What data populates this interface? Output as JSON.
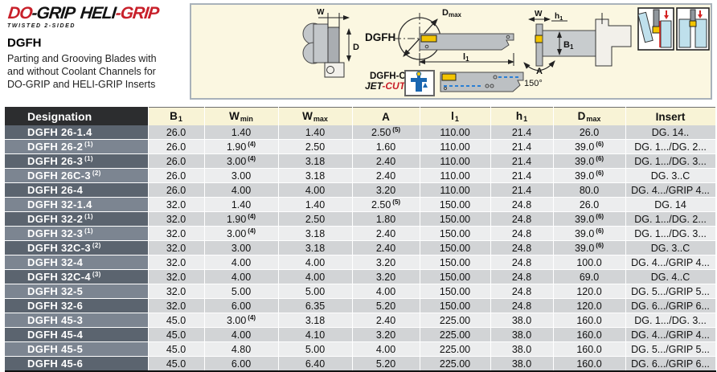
{
  "branding": {
    "logo": {
      "do": "DO",
      "grip1": "-GRIP",
      "heli": "HELI",
      "grip2": "-GRIP"
    },
    "tagline": "TWISTED 2-SIDED",
    "product_code": "DGFH",
    "description": [
      "Parting and Grooving Blades with",
      "and without Coolant Channels for",
      "DO-GRIP and HELI-GRIP Inserts"
    ]
  },
  "diagram": {
    "labels": {
      "w": "W",
      "d": "D",
      "dgfh": "DGFH",
      "dmax_main": "D",
      "dmax_sub": "max",
      "l1_main": "l",
      "l1_sub": "1",
      "dgfh_c": "DGFH-C",
      "jet": "JET",
      "cut": "-CUT",
      "h1_main": "h",
      "h1_sub": "1",
      "b1_main": "B",
      "b1_sub": "1",
      "a": "A",
      "angle": "150°"
    }
  },
  "colors": {
    "accent_red": "#c8202a",
    "coolant_blue": "#1a5fa8",
    "panel_cream": "#fbf7e1",
    "header_cream": "#f8f3d6",
    "header_dark": "#2c2d2f",
    "designation_dark": "#5b646f",
    "designation_light": "#7c8591",
    "row_dark": "#d2d4d6",
    "row_light": "#ecedee",
    "insert_yellow": "#f2c400",
    "workpiece_blue": "#bfe0ec"
  },
  "table": {
    "columns": [
      {
        "label": "Designation",
        "dark": true
      },
      {
        "main": "B",
        "sub": "1"
      },
      {
        "main": "W",
        "sub": "min"
      },
      {
        "main": "W",
        "sub": "max"
      },
      {
        "main": "A"
      },
      {
        "main": "l",
        "sub": "1"
      },
      {
        "main": "h",
        "sub": "1"
      },
      {
        "main": "D",
        "sub": "max"
      },
      {
        "main": "Insert"
      }
    ],
    "rows": [
      {
        "designation": "DGFH 26-1.4",
        "cells": [
          {
            "v": "26.0"
          },
          {
            "v": "1.40"
          },
          {
            "v": "1.40"
          },
          {
            "v": "2.50",
            "note": "(5)"
          },
          {
            "v": "110.00"
          },
          {
            "v": "21.4"
          },
          {
            "v": "26.0"
          },
          {
            "v": "DG. 14.."
          }
        ]
      },
      {
        "designation": "DGFH 26-2",
        "note": "(1)",
        "cells": [
          {
            "v": "26.0"
          },
          {
            "v": "1.90",
            "note": "(4)"
          },
          {
            "v": "2.50"
          },
          {
            "v": "1.60"
          },
          {
            "v": "110.00"
          },
          {
            "v": "21.4"
          },
          {
            "v": "39.0",
            "note": "(6)"
          },
          {
            "v": "DG. 1.../DG. 2..."
          }
        ]
      },
      {
        "designation": "DGFH 26-3",
        "note": "(1)",
        "cells": [
          {
            "v": "26.0"
          },
          {
            "v": "3.00",
            "note": "(4)"
          },
          {
            "v": "3.18"
          },
          {
            "v": "2.40"
          },
          {
            "v": "110.00"
          },
          {
            "v": "21.4"
          },
          {
            "v": "39.0",
            "note": "(6)"
          },
          {
            "v": "DG. 1.../DG. 3..."
          }
        ]
      },
      {
        "designation": "DGFH 26C-3",
        "note": "(2)",
        "cells": [
          {
            "v": "26.0"
          },
          {
            "v": "3.00"
          },
          {
            "v": "3.18"
          },
          {
            "v": "2.40"
          },
          {
            "v": "110.00"
          },
          {
            "v": "21.4"
          },
          {
            "v": "39.0",
            "note": "(6)"
          },
          {
            "v": "DG. 3..C"
          }
        ]
      },
      {
        "designation": "DGFH 26-4",
        "cells": [
          {
            "v": "26.0"
          },
          {
            "v": "4.00"
          },
          {
            "v": "4.00"
          },
          {
            "v": "3.20"
          },
          {
            "v": "110.00"
          },
          {
            "v": "21.4"
          },
          {
            "v": "80.0"
          },
          {
            "v": "DG. 4.../GRIP 4..."
          }
        ]
      },
      {
        "designation": "DGFH 32-1.4",
        "cells": [
          {
            "v": "32.0"
          },
          {
            "v": "1.40"
          },
          {
            "v": "1.40"
          },
          {
            "v": "2.50",
            "note": "(5)"
          },
          {
            "v": "150.00"
          },
          {
            "v": "24.8"
          },
          {
            "v": "26.0"
          },
          {
            "v": "DG. 14"
          }
        ]
      },
      {
        "designation": "DGFH 32-2",
        "note": "(1)",
        "cells": [
          {
            "v": "32.0"
          },
          {
            "v": "1.90",
            "note": "(4)"
          },
          {
            "v": "2.50"
          },
          {
            "v": "1.80"
          },
          {
            "v": "150.00"
          },
          {
            "v": "24.8"
          },
          {
            "v": "39.0",
            "note": "(6)"
          },
          {
            "v": "DG. 1.../DG. 2..."
          }
        ]
      },
      {
        "designation": "DGFH 32-3",
        "note": "(1)",
        "cells": [
          {
            "v": "32.0"
          },
          {
            "v": "3.00",
            "note": "(4)"
          },
          {
            "v": "3.18"
          },
          {
            "v": "2.40"
          },
          {
            "v": "150.00"
          },
          {
            "v": "24.8"
          },
          {
            "v": "39.0",
            "note": "(6)"
          },
          {
            "v": "DG. 1.../DG. 3..."
          }
        ]
      },
      {
        "designation": "DGFH 32C-3",
        "note": "(2)",
        "cells": [
          {
            "v": "32.0"
          },
          {
            "v": "3.00"
          },
          {
            "v": "3.18"
          },
          {
            "v": "2.40"
          },
          {
            "v": "150.00"
          },
          {
            "v": "24.8"
          },
          {
            "v": "39.0",
            "note": "(6)"
          },
          {
            "v": "DG. 3..C"
          }
        ]
      },
      {
        "designation": "DGFH 32-4",
        "cells": [
          {
            "v": "32.0"
          },
          {
            "v": "4.00"
          },
          {
            "v": "4.00"
          },
          {
            "v": "3.20"
          },
          {
            "v": "150.00"
          },
          {
            "v": "24.8"
          },
          {
            "v": "100.0"
          },
          {
            "v": "DG. 4.../GRIP 4..."
          }
        ]
      },
      {
        "designation": "DGFH 32C-4",
        "note": "(3)",
        "cells": [
          {
            "v": "32.0"
          },
          {
            "v": "4.00"
          },
          {
            "v": "4.00"
          },
          {
            "v": "3.20"
          },
          {
            "v": "150.00"
          },
          {
            "v": "24.8"
          },
          {
            "v": "69.0"
          },
          {
            "v": "DG. 4..C"
          }
        ]
      },
      {
        "designation": "DGFH 32-5",
        "cells": [
          {
            "v": "32.0"
          },
          {
            "v": "5.00"
          },
          {
            "v": "5.00"
          },
          {
            "v": "4.00"
          },
          {
            "v": "150.00"
          },
          {
            "v": "24.8"
          },
          {
            "v": "120.0"
          },
          {
            "v": "DG. 5.../GRIP 5..."
          }
        ]
      },
      {
        "designation": "DGFH 32-6",
        "cells": [
          {
            "v": "32.0"
          },
          {
            "v": "6.00"
          },
          {
            "v": "6.35"
          },
          {
            "v": "5.20"
          },
          {
            "v": "150.00"
          },
          {
            "v": "24.8"
          },
          {
            "v": "120.0"
          },
          {
            "v": "DG. 6.../GRIP 6..."
          }
        ]
      },
      {
        "designation": "DGFH 45-3",
        "cells": [
          {
            "v": "45.0"
          },
          {
            "v": "3.00",
            "note": "(4)"
          },
          {
            "v": "3.18"
          },
          {
            "v": "2.40"
          },
          {
            "v": "225.00"
          },
          {
            "v": "38.0"
          },
          {
            "v": "160.0"
          },
          {
            "v": "DG. 1.../DG. 3..."
          }
        ]
      },
      {
        "designation": "DGFH 45-4",
        "cells": [
          {
            "v": "45.0"
          },
          {
            "v": "4.00"
          },
          {
            "v": "4.10"
          },
          {
            "v": "3.20"
          },
          {
            "v": "225.00"
          },
          {
            "v": "38.0"
          },
          {
            "v": "160.0"
          },
          {
            "v": "DG. 4.../GRIP 4..."
          }
        ]
      },
      {
        "designation": "DGFH 45-5",
        "cells": [
          {
            "v": "45.0"
          },
          {
            "v": "4.80"
          },
          {
            "v": "5.00"
          },
          {
            "v": "4.00"
          },
          {
            "v": "225.00"
          },
          {
            "v": "38.0"
          },
          {
            "v": "160.0"
          },
          {
            "v": "DG. 5.../GRIP 5..."
          }
        ]
      },
      {
        "designation": "DGFH 45-6",
        "cells": [
          {
            "v": "45.0"
          },
          {
            "v": "6.00"
          },
          {
            "v": "6.40"
          },
          {
            "v": "5.20"
          },
          {
            "v": "225.00"
          },
          {
            "v": "38.0"
          },
          {
            "v": "160.0"
          },
          {
            "v": "DG. 6.../GRIP 6..."
          }
        ]
      }
    ]
  }
}
